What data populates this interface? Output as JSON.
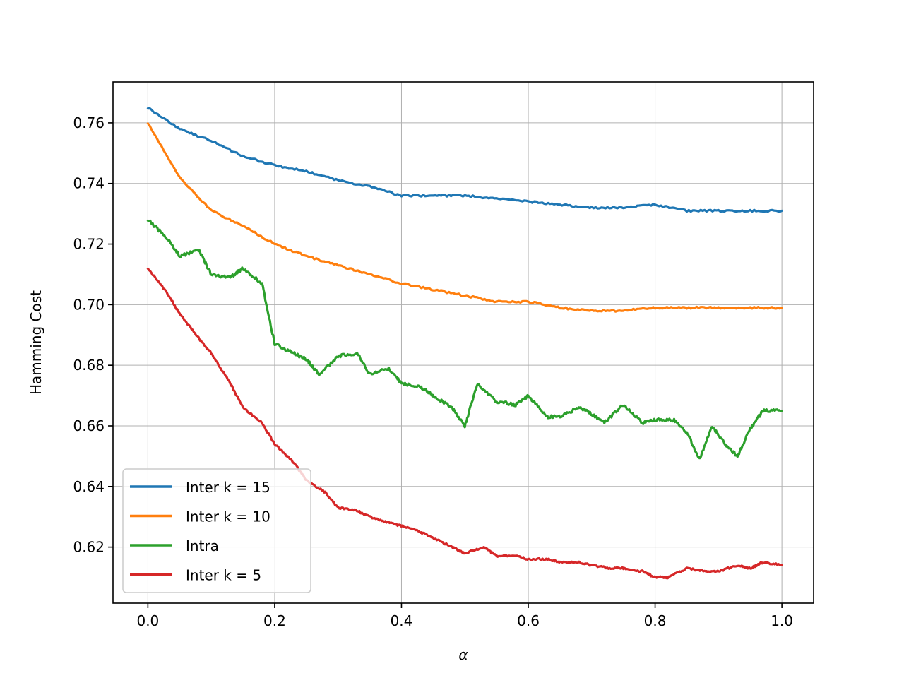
{
  "chart_data": {
    "type": "line",
    "xlabel": "α",
    "ylabel": "Hamming Cost",
    "xlim": [
      -0.055,
      1.05
    ],
    "ylim": [
      0.6015,
      0.7735
    ],
    "x_ticks": [
      0.0,
      0.2,
      0.4,
      0.6,
      0.8,
      1.0
    ],
    "x_tick_labels": [
      "0.0",
      "0.2",
      "0.4",
      "0.6",
      "0.8",
      "1.0"
    ],
    "y_ticks": [
      0.62,
      0.64,
      0.66,
      0.68,
      0.7,
      0.72,
      0.74,
      0.76
    ],
    "y_tick_labels": [
      "0.62",
      "0.64",
      "0.66",
      "0.68",
      "0.70",
      "0.72",
      "0.74",
      "0.76"
    ],
    "grid": true,
    "legend_position": "lower-left",
    "series": [
      {
        "name": "Inter k = 15",
        "color": "#1f77b4",
        "x": [
          0.0,
          0.05,
          0.1,
          0.15,
          0.2,
          0.25,
          0.3,
          0.35,
          0.4,
          0.45,
          0.5,
          0.55,
          0.6,
          0.65,
          0.7,
          0.75,
          0.8,
          0.85,
          0.9,
          0.95,
          1.0
        ],
        "y": [
          0.765,
          0.758,
          0.754,
          0.749,
          0.746,
          0.744,
          0.741,
          0.739,
          0.736,
          0.736,
          0.736,
          0.735,
          0.734,
          0.733,
          0.732,
          0.732,
          0.733,
          0.731,
          0.731,
          0.731,
          0.731
        ]
      },
      {
        "name": "Inter k = 10",
        "color": "#ff7f0e",
        "x": [
          0.0,
          0.05,
          0.1,
          0.15,
          0.2,
          0.25,
          0.3,
          0.35,
          0.4,
          0.45,
          0.5,
          0.55,
          0.6,
          0.65,
          0.7,
          0.75,
          0.8,
          0.85,
          0.9,
          0.95,
          1.0
        ],
        "y": [
          0.76,
          0.742,
          0.731,
          0.726,
          0.72,
          0.716,
          0.713,
          0.71,
          0.707,
          0.705,
          0.703,
          0.701,
          0.701,
          0.699,
          0.698,
          0.698,
          0.699,
          0.699,
          0.699,
          0.699,
          0.699
        ]
      },
      {
        "name": "Intra",
        "color": "#2ca02c",
        "x": [
          0.0,
          0.03,
          0.05,
          0.08,
          0.1,
          0.13,
          0.15,
          0.18,
          0.2,
          0.23,
          0.25,
          0.27,
          0.3,
          0.33,
          0.35,
          0.38,
          0.4,
          0.43,
          0.45,
          0.48,
          0.5,
          0.52,
          0.55,
          0.58,
          0.6,
          0.63,
          0.65,
          0.68,
          0.7,
          0.72,
          0.75,
          0.78,
          0.8,
          0.83,
          0.85,
          0.87,
          0.89,
          0.91,
          0.93,
          0.95,
          0.97,
          1.0
        ],
        "y": [
          0.728,
          0.722,
          0.716,
          0.718,
          0.71,
          0.709,
          0.712,
          0.707,
          0.687,
          0.684,
          0.682,
          0.677,
          0.683,
          0.684,
          0.677,
          0.679,
          0.674,
          0.673,
          0.67,
          0.666,
          0.66,
          0.674,
          0.668,
          0.667,
          0.67,
          0.663,
          0.663,
          0.666,
          0.664,
          0.661,
          0.667,
          0.661,
          0.662,
          0.662,
          0.658,
          0.649,
          0.66,
          0.654,
          0.65,
          0.659,
          0.665,
          0.665
        ]
      },
      {
        "name": "Inter k = 5",
        "color": "#d62728",
        "x": [
          0.0,
          0.03,
          0.05,
          0.08,
          0.1,
          0.13,
          0.15,
          0.18,
          0.2,
          0.23,
          0.25,
          0.28,
          0.3,
          0.33,
          0.35,
          0.38,
          0.4,
          0.43,
          0.45,
          0.48,
          0.5,
          0.53,
          0.55,
          0.58,
          0.6,
          0.63,
          0.65,
          0.68,
          0.7,
          0.73,
          0.75,
          0.78,
          0.8,
          0.82,
          0.85,
          0.88,
          0.9,
          0.93,
          0.95,
          0.97,
          1.0
        ],
        "y": [
          0.712,
          0.704,
          0.697,
          0.689,
          0.684,
          0.674,
          0.666,
          0.661,
          0.654,
          0.648,
          0.642,
          0.638,
          0.633,
          0.632,
          0.63,
          0.628,
          0.627,
          0.625,
          0.623,
          0.62,
          0.618,
          0.62,
          0.617,
          0.617,
          0.616,
          0.616,
          0.615,
          0.615,
          0.614,
          0.613,
          0.613,
          0.612,
          0.61,
          0.61,
          0.613,
          0.612,
          0.612,
          0.614,
          0.613,
          0.615,
          0.614
        ]
      }
    ]
  }
}
